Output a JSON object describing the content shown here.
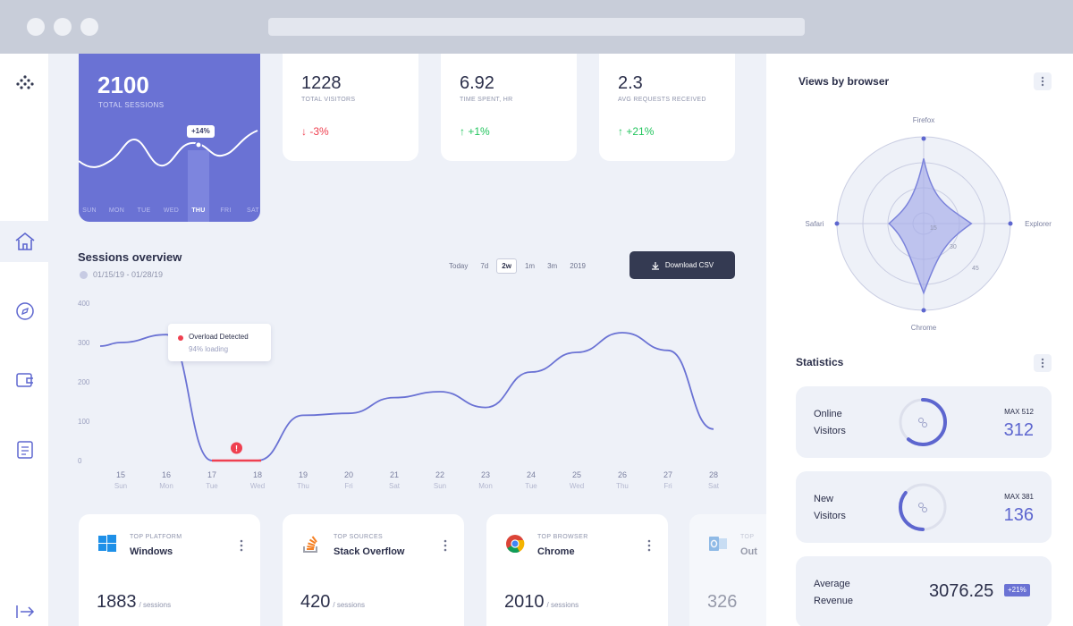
{
  "hero": {
    "value": "2100",
    "label": "TOTAL SESSIONS",
    "badge": "+14%",
    "days": [
      "SUN",
      "MON",
      "TUE",
      "WED",
      "THU",
      "FRI",
      "SAT"
    ],
    "selected_day": "THU"
  },
  "stats": [
    {
      "value": "1228",
      "label": "TOTAL VISITORS",
      "delta": "↓ -3%",
      "trend": "down"
    },
    {
      "value": "6.92",
      "label": "TIME SPENT, HR",
      "delta": "↑ +1%",
      "trend": "up"
    },
    {
      "value": "2.3",
      "label": "AVG REQUESTS RECEIVED",
      "delta": "↑ +21%",
      "trend": "up"
    }
  ],
  "sessions": {
    "title": "Sessions overview",
    "date_range": "01/15/19 - 01/28/19",
    "ranges": [
      "Today",
      "7d",
      "2w",
      "1m",
      "3m",
      "2019"
    ],
    "selected_range": "2w",
    "download_label": "Download CSV",
    "tooltip_title": "Overload Detected",
    "tooltip_sub": "94% loading"
  },
  "chart_data": {
    "type": "line",
    "x": [
      "15",
      "16",
      "17",
      "18",
      "19",
      "20",
      "21",
      "22",
      "23",
      "24",
      "25",
      "26",
      "27",
      "28"
    ],
    "x_sub": [
      "Sun",
      "Mon",
      "Tue",
      "Wed",
      "Thu",
      "Fri",
      "Sat",
      "Sun",
      "Mon",
      "Tue",
      "Wed",
      "Thu",
      "Fri",
      "Sat"
    ],
    "y_ticks": [
      0,
      100,
      200,
      300,
      400
    ],
    "ylim": [
      0,
      400
    ],
    "series": [
      {
        "values": [
          300,
          320,
          0,
          0,
          115,
          120,
          160,
          175,
          135,
          225,
          275,
          325,
          280,
          80
        ]
      }
    ],
    "alert_range": [
      "17",
      "18"
    ],
    "grid": false,
    "legend": "none"
  },
  "bottom_cards": [
    {
      "kicker": "TOP PLATFORM",
      "name": "Windows",
      "value": "1883",
      "unit": "/ sessions",
      "icon": "windows-icon"
    },
    {
      "kicker": "TOP SOURCES",
      "name": "Stack Overflow",
      "value": "420",
      "unit": "/ sessions",
      "icon": "stack-overflow-icon"
    },
    {
      "kicker": "TOP BROWSER",
      "name": "Chrome",
      "value": "2010",
      "unit": "/ sessions",
      "icon": "chrome-icon"
    },
    {
      "kicker": "TOP",
      "name": "Out",
      "value": "326",
      "unit": "",
      "icon": "outlook-icon"
    }
  ],
  "views": {
    "title": "Views by browser",
    "labels": [
      "Firefox",
      "Explorer",
      "Chrome",
      "Safari"
    ],
    "rings": [
      "15",
      "30",
      "45"
    ],
    "radar_values": {
      "Firefox": 75,
      "Explorer": 55,
      "Chrome": 80,
      "Safari": 40
    }
  },
  "statistics": {
    "title": "Statistics",
    "cards": [
      {
        "label1": "Online",
        "label2": "Visitors",
        "max": "MAX 512",
        "value": "312",
        "progress": 0.61
      },
      {
        "label1": "New",
        "label2": "Visitors",
        "max": "MAX 381",
        "value": "136",
        "progress": 0.36
      },
      {
        "label1": "Average",
        "label2": "Revenue",
        "value": "3076.25",
        "badge": "+21%"
      }
    ]
  },
  "colors": {
    "accent": "#6a72d4",
    "down": "#ef4050",
    "up": "#23c55e",
    "dark": "#343a52"
  }
}
